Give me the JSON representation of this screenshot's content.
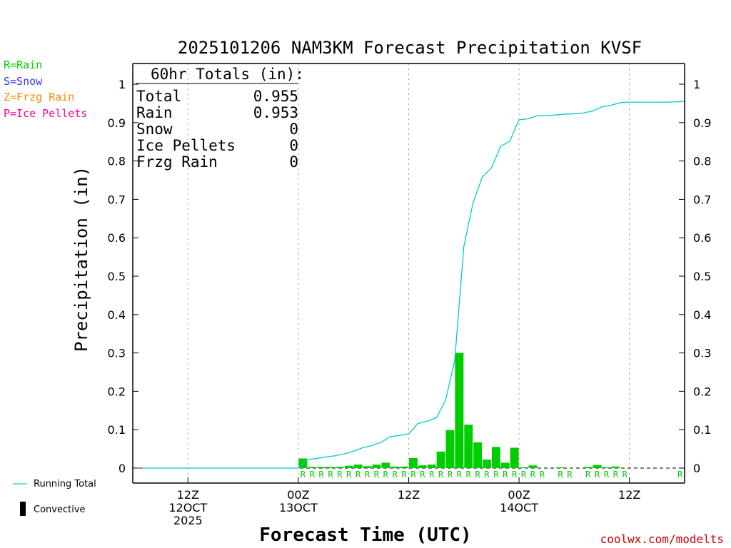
{
  "chart_data": {
    "type": "bar",
    "title": "2025101206 NAM3KM Forecast Precipitation KVSF",
    "xlabel": "Forecast Time (UTC)",
    "ylabel": "Precipitation (in)",
    "ylim": [
      0,
      1.05
    ],
    "yticks": [
      0,
      0.1,
      0.2,
      0.3,
      0.4,
      0.5,
      0.6,
      0.7,
      0.8,
      0.9,
      1
    ],
    "ytick_labels": [
      "0",
      "0.1",
      "0.2",
      "0.3",
      "0.4",
      "0.5",
      "0.6",
      "0.7",
      "0.8",
      "0.9",
      "1"
    ],
    "x_range_hours": [
      6,
      66
    ],
    "x_ticks": [
      {
        "hour": 12,
        "label_line1": "12Z",
        "label_line2": "12OCT",
        "label_line3": "2025"
      },
      {
        "hour": 24,
        "label_line1": "00Z",
        "label_line2": "13OCT",
        "label_line3": ""
      },
      {
        "hour": 36,
        "label_line1": "12Z",
        "label_line2": "",
        "label_line3": ""
      },
      {
        "hour": 48,
        "label_line1": "00Z",
        "label_line2": "14OCT",
        "label_line3": ""
      },
      {
        "hour": 60,
        "label_line1": "12Z",
        "label_line2": "",
        "label_line3": ""
      }
    ],
    "bar_width_hours": 1,
    "bars": [
      {
        "hour": 25,
        "value": 0.025
      },
      {
        "hour": 26,
        "value": 0.003
      },
      {
        "hour": 27,
        "value": 0.003
      },
      {
        "hour": 28,
        "value": 0.003
      },
      {
        "hour": 29,
        "value": 0.003
      },
      {
        "hour": 30,
        "value": 0.006
      },
      {
        "hour": 31,
        "value": 0.009
      },
      {
        "hour": 32,
        "value": 0.005
      },
      {
        "hour": 33,
        "value": 0.009
      },
      {
        "hour": 34,
        "value": 0.014
      },
      {
        "hour": 35,
        "value": 0.004
      },
      {
        "hour": 36,
        "value": 0.004
      },
      {
        "hour": 37,
        "value": 0.026
      },
      {
        "hour": 38,
        "value": 0.007
      },
      {
        "hour": 39,
        "value": 0.009
      },
      {
        "hour": 40,
        "value": 0.043
      },
      {
        "hour": 41,
        "value": 0.099
      },
      {
        "hour": 42,
        "value": 0.3
      },
      {
        "hour": 43,
        "value": 0.113
      },
      {
        "hour": 44,
        "value": 0.067
      },
      {
        "hour": 45,
        "value": 0.022
      },
      {
        "hour": 46,
        "value": 0.055
      },
      {
        "hour": 47,
        "value": 0.014
      },
      {
        "hour": 48,
        "value": 0.053
      },
      {
        "hour": 49,
        "value": 0.002
      },
      {
        "hour": 50,
        "value": 0.007
      },
      {
        "hour": 53,
        "value": 0.002
      },
      {
        "hour": 56,
        "value": 0.003
      },
      {
        "hour": 57,
        "value": 0.008
      },
      {
        "hour": 58,
        "value": 0.002
      },
      {
        "hour": 59,
        "value": 0.004
      }
    ],
    "running_total": {
      "name": "Running Total",
      "color": "#00cccc",
      "points": [
        [
          7,
          0
        ],
        [
          24,
          0
        ],
        [
          25,
          0.022
        ],
        [
          26,
          0.025
        ],
        [
          27,
          0.029
        ],
        [
          28,
          0.032
        ],
        [
          29,
          0.037
        ],
        [
          30,
          0.044
        ],
        [
          31,
          0.053
        ],
        [
          32,
          0.059
        ],
        [
          33,
          0.067
        ],
        [
          34,
          0.082
        ],
        [
          35,
          0.085
        ],
        [
          36,
          0.089
        ],
        [
          37,
          0.116
        ],
        [
          38,
          0.122
        ],
        [
          39,
          0.131
        ],
        [
          40,
          0.176
        ],
        [
          41,
          0.279
        ],
        [
          42,
          0.578
        ],
        [
          43,
          0.691
        ],
        [
          44,
          0.758
        ],
        [
          45,
          0.782
        ],
        [
          46,
          0.838
        ],
        [
          47,
          0.852
        ],
        [
          48,
          0.907
        ],
        [
          49,
          0.91
        ],
        [
          50,
          0.918
        ],
        [
          51,
          0.918
        ],
        [
          52,
          0.92
        ],
        [
          53,
          0.922
        ],
        [
          54,
          0.923
        ],
        [
          55,
          0.925
        ],
        [
          56,
          0.93
        ],
        [
          57,
          0.941
        ],
        [
          58,
          0.945
        ],
        [
          59,
          0.952
        ],
        [
          60,
          0.953
        ],
        [
          61,
          0.953
        ],
        [
          62,
          0.953
        ],
        [
          63,
          0.953
        ],
        [
          64,
          0.953
        ],
        [
          66,
          0.955
        ]
      ]
    },
    "precip_type_marks": {
      "hours": [
        24.5,
        25.5,
        26.5,
        27.5,
        28.5,
        29.5,
        30.5,
        31.5,
        32.5,
        33.5,
        34.5,
        35.5,
        36.5,
        37.5,
        38.5,
        39.5,
        40.5,
        41.5,
        42.5,
        43.5,
        44.5,
        45.5,
        46.5,
        47.5,
        48.5,
        49.5,
        50.5,
        52.5,
        53.5,
        55.5,
        56.5,
        57.5,
        58.5,
        59.5,
        65.5
      ],
      "symbol": "R"
    },
    "legend_left": [
      {
        "label": "R=Rain",
        "color": "#00cc00"
      },
      {
        "label": "S=Snow",
        "color": "#3333ff"
      },
      {
        "label": "Z=Frzg Rain",
        "color": "#ff8800"
      },
      {
        "label": "P=Ice Pellets",
        "color": "#ff0099"
      }
    ],
    "totals_box": {
      "header": "60hr Totals (in):",
      "rows": [
        {
          "label": "Total",
          "value": "0.955"
        },
        {
          "label": "Rain",
          "value": "0.953"
        },
        {
          "label": "Snow",
          "value": "0"
        },
        {
          "label": "Ice Pellets",
          "value": "0"
        },
        {
          "label": "Frzg Rain",
          "value": "0"
        }
      ]
    },
    "bottom_legend": {
      "running_total_label": "Running Total",
      "convective_label": "Convective"
    },
    "credit": "coolwx.com/modelts",
    "colors": {
      "bar": "#00cc00",
      "line": "#00cccc",
      "grid": "#999999"
    }
  }
}
